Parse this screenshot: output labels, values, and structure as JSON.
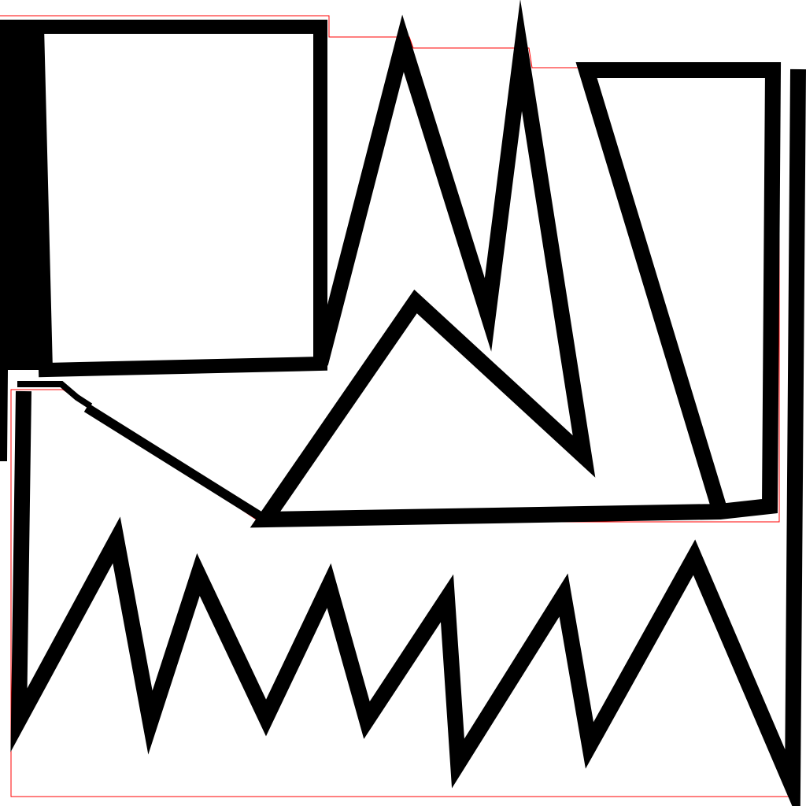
{
  "colors": {
    "background": "#ffffff",
    "ink": "#000000",
    "guide": "#ff0000"
  }
}
